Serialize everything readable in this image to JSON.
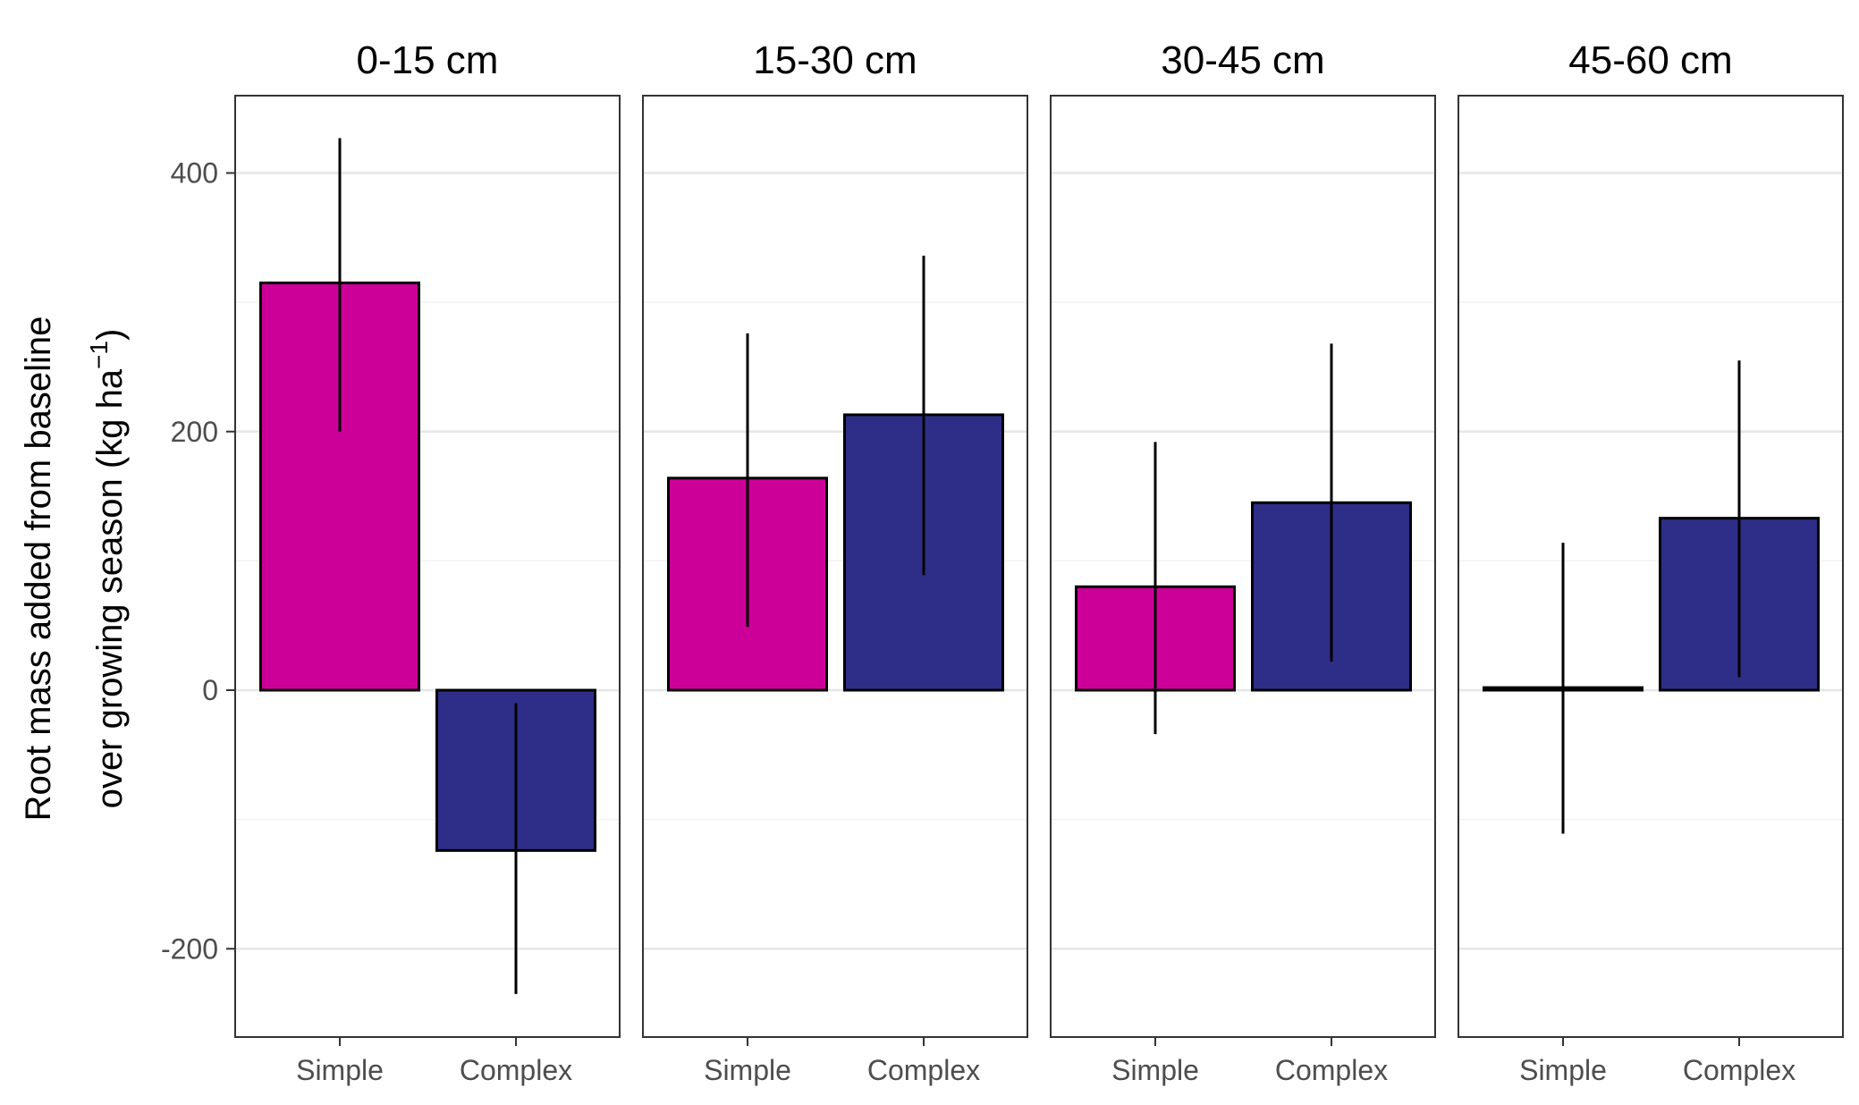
{
  "chart_data": {
    "type": "bar",
    "facets": [
      "0-15 cm",
      "15-30 cm",
      "30-45 cm",
      "45-60 cm"
    ],
    "categories": [
      "Simple",
      "Complex"
    ],
    "colors": {
      "Simple": "#cc0099",
      "Complex": "#2e2e88"
    },
    "panels": [
      {
        "facet": "0-15 cm",
        "bars": [
          {
            "category": "Simple",
            "value": 315,
            "lower": 200,
            "upper": 427
          },
          {
            "category": "Complex",
            "value": -124,
            "lower": -235,
            "upper": -10
          }
        ]
      },
      {
        "facet": "15-30 cm",
        "bars": [
          {
            "category": "Simple",
            "value": 164,
            "lower": 49,
            "upper": 276
          },
          {
            "category": "Complex",
            "value": 213,
            "lower": 89,
            "upper": 336
          }
        ]
      },
      {
        "facet": "30-45 cm",
        "bars": [
          {
            "category": "Simple",
            "value": 80,
            "lower": -34,
            "upper": 192
          },
          {
            "category": "Complex",
            "value": 145,
            "lower": 22,
            "upper": 268
          }
        ]
      },
      {
        "facet": "45-60 cm",
        "bars": [
          {
            "category": "Simple",
            "value": 2,
            "lower": -111,
            "upper": 114
          },
          {
            "category": "Complex",
            "value": 133,
            "lower": 10,
            "upper": 255
          }
        ]
      }
    ],
    "yticks": [
      -200,
      0,
      200,
      400
    ],
    "ytick_labels": [
      "-200",
      "0",
      "200",
      "400"
    ],
    "ylim": [
      -268,
      460
    ],
    "ylabel_line1": "Root mass added from baseline",
    "ylabel_line2_main": "over growing season (kg  ha",
    "ylabel_line2_sup": "−1",
    "ylabel_line2_end": ")",
    "grid": true,
    "legend": "none"
  }
}
